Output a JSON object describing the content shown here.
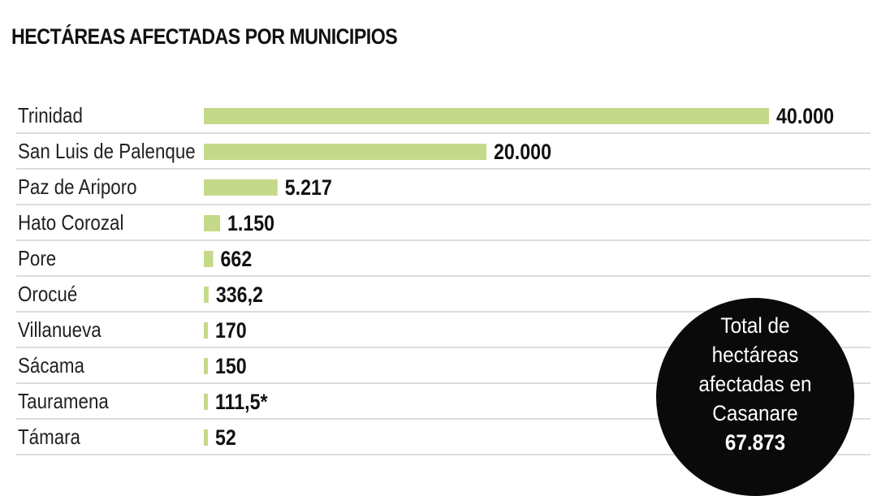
{
  "title": "HECTÁREAS AFECTADAS POR MUNICIPIOS",
  "colors": {
    "bar": "#c5d98a",
    "divider": "#c8c8c8",
    "circle": "#0a0a0a"
  },
  "total": {
    "lines": [
      "Total de",
      "hectáreas",
      "afectadas en",
      "Casanare"
    ],
    "value": "67.873"
  },
  "chart_data": {
    "type": "bar",
    "orientation": "horizontal",
    "title": "HECTÁREAS AFECTADAS POR MUNICIPIOS",
    "categories": [
      "Trinidad",
      "San Luis de Palenque",
      "Paz de Ariporo",
      "Hato Corozal",
      "Pore",
      "Orocué",
      "Villanueva",
      "Sácama",
      "Tauramena",
      "Támara"
    ],
    "values": [
      40000,
      20000,
      5217,
      1150,
      662,
      336.2,
      170,
      150,
      111.5,
      52
    ],
    "value_labels": [
      "40.000",
      "20.000",
      "5.217",
      "1.150",
      "662",
      "336,2",
      "170",
      "150",
      "111,5*",
      "52"
    ],
    "xlim": [
      0,
      40000
    ],
    "grid": false,
    "legend": "none"
  }
}
